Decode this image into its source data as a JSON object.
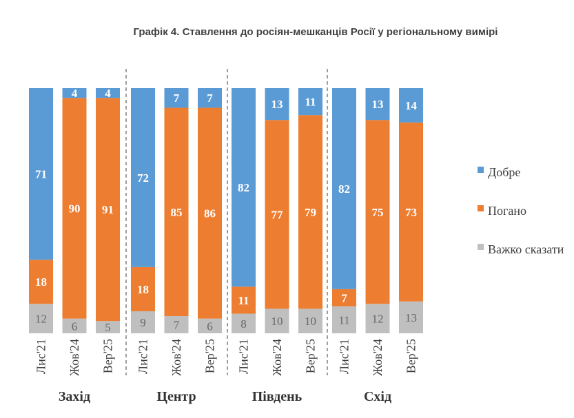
{
  "chart_data": {
    "type": "bar",
    "stacked": true,
    "title": "Графік 4. Ставлення до росіян-мешканців Росії у регіональному вимірі",
    "groups": [
      "Захід",
      "Центр",
      "Південь",
      "Схід"
    ],
    "categories": [
      "Лис'21",
      "Жов'24",
      "Вер'25"
    ],
    "series": [
      {
        "name": "Добре",
        "color": "#5B9BD5",
        "values": [
          [
            71,
            4,
            4
          ],
          [
            72,
            7,
            7
          ],
          [
            82,
            13,
            11
          ],
          [
            82,
            13,
            14
          ]
        ]
      },
      {
        "name": "Погано",
        "color": "#ED7D31",
        "values": [
          [
            18,
            90,
            91
          ],
          [
            18,
            85,
            86
          ],
          [
            11,
            77,
            79
          ],
          [
            7,
            75,
            73
          ]
        ]
      },
      {
        "name": "Важко сказати",
        "color": "#BFBFBF",
        "values": [
          [
            12,
            6,
            5
          ],
          [
            9,
            7,
            6
          ],
          [
            8,
            10,
            10
          ],
          [
            11,
            12,
            13
          ]
        ]
      }
    ],
    "ylim": [
      0,
      100
    ],
    "grid": false,
    "legend": "right"
  }
}
